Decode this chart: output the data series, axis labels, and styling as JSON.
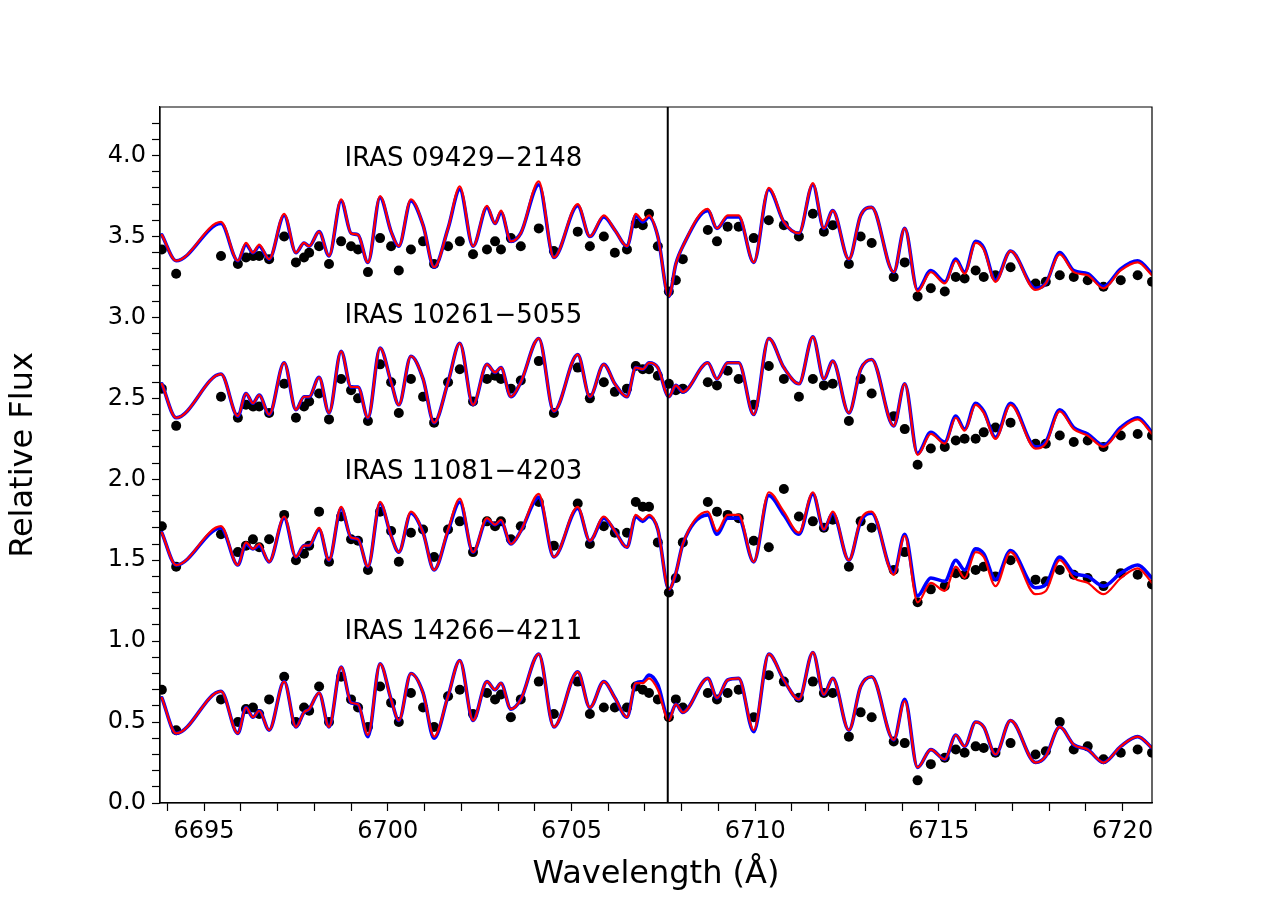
{
  "chart_data": {
    "type": "line",
    "xlabel": "Wavelength (Å)",
    "ylabel": "Relative Flux",
    "xlim": [
      6693.8,
      6720.8
    ],
    "ylim": [
      0,
      4.3
    ],
    "xticks": [
      {
        "value": 6694,
        "label": null
      },
      6695,
      {
        "value": 6696,
        "label": null
      },
      {
        "value": 6697,
        "label": null
      },
      {
        "value": 6698,
        "label": null
      },
      {
        "value": 6699,
        "label": null
      },
      6700,
      {
        "value": 6701,
        "label": null
      },
      {
        "value": 6702,
        "label": null
      },
      {
        "value": 6703,
        "label": null
      },
      {
        "value": 6704,
        "label": null
      },
      6705,
      {
        "value": 6706,
        "label": null
      },
      {
        "value": 6707,
        "label": null
      },
      {
        "value": 6708,
        "label": null
      },
      {
        "value": 6709,
        "label": null
      },
      6710,
      {
        "value": 6711,
        "label": null
      },
      {
        "value": 6712,
        "label": null
      },
      {
        "value": 6713,
        "label": null
      },
      {
        "value": 6714,
        "label": null
      },
      6715,
      {
        "value": 6716,
        "label": null
      },
      {
        "value": 6717,
        "label": null
      },
      {
        "value": 6718,
        "label": null
      },
      {
        "value": 6719,
        "label": null
      },
      6720
    ],
    "yticks": [
      {
        "value": 0,
        "label": "0.0"
      },
      {
        "value": 0.1,
        "label": null
      },
      {
        "value": 0.2,
        "label": null
      },
      {
        "value": 0.3,
        "label": null
      },
      {
        "value": 0.4,
        "label": null
      },
      {
        "value": 0.5,
        "label": "0.5"
      },
      {
        "value": 0.6,
        "label": null
      },
      {
        "value": 0.7,
        "label": null
      },
      {
        "value": 0.8,
        "label": null
      },
      {
        "value": 0.9,
        "label": null
      },
      {
        "value": 1,
        "label": "1.0"
      },
      {
        "value": 1.1,
        "label": null
      },
      {
        "value": 1.2,
        "label": null
      },
      {
        "value": 1.3,
        "label": null
      },
      {
        "value": 1.4,
        "label": null
      },
      {
        "value": 1.5,
        "label": "1.5"
      },
      {
        "value": 1.6,
        "label": null
      },
      {
        "value": 1.7,
        "label": null
      },
      {
        "value": 1.8,
        "label": null
      },
      {
        "value": 1.9,
        "label": null
      },
      {
        "value": 2,
        "label": "2.0"
      },
      {
        "value": 2.1,
        "label": null
      },
      {
        "value": 2.2,
        "label": null
      },
      {
        "value": 2.3,
        "label": null
      },
      {
        "value": 2.4,
        "label": null
      },
      {
        "value": 2.5,
        "label": "2.5"
      },
      {
        "value": 2.6,
        "label": null
      },
      {
        "value": 2.7,
        "label": null
      },
      {
        "value": 2.8,
        "label": null
      },
      {
        "value": 2.9,
        "label": null
      },
      {
        "value": 3,
        "label": "3.0"
      },
      {
        "value": 3.1,
        "label": null
      },
      {
        "value": 3.2,
        "label": null
      },
      {
        "value": 3.3,
        "label": null
      },
      {
        "value": 3.4,
        "label": null
      },
      {
        "value": 3.5,
        "label": "3.5"
      },
      {
        "value": 3.6,
        "label": null
      },
      {
        "value": 3.7,
        "label": null
      },
      {
        "value": 3.8,
        "label": null
      },
      {
        "value": 3.9,
        "label": null
      },
      {
        "value": 4,
        "label": "4.0"
      },
      {
        "value": 4.1,
        "label": null
      },
      {
        "value": 4.2,
        "label": null
      }
    ],
    "x": [
      6693.85,
      6694.24,
      6695.46,
      6695.92,
      6696.14,
      6696.33,
      6696.5,
      6696.77,
      6697.18,
      6697.5,
      6697.72,
      6697.86,
      6698.13,
      6698.4,
      6698.73,
      6699.0,
      6699.19,
      6699.46,
      6699.79,
      6700.09,
      6700.3,
      6700.63,
      6700.96,
      6701.26,
      6701.64,
      6701.96,
      6702.32,
      6702.7,
      6702.92,
      6703.08,
      6703.35,
      6703.62,
      6704.11,
      6704.52,
      6705.17,
      6705.5,
      6705.88,
      6706.18,
      6706.51,
      6706.75,
      6706.94,
      6707.11,
      6707.35,
      6707.65,
      6707.84,
      6708.03,
      6708.71,
      6708.96,
      6709.25,
      6709.55,
      6709.96,
      6710.37,
      6710.78,
      6711.19,
      6711.57,
      6711.87,
      6712.11,
      6712.55,
      6712.87,
      6713.17,
      6713.77,
      6714.07,
      6714.42,
      6714.78,
      6715.16,
      6715.46,
      6715.7,
      6716.0,
      6716.22,
      6716.54,
      6716.95,
      6717.63,
      6717.91,
      6718.29,
      6718.67,
      6719.05,
      6719.48,
      6719.95,
      6720.41,
      6720.8
    ],
    "series": [
      {
        "type": "scatter",
        "name": "IRAS 09429−2148",
        "color": "#000000",
        "marker": "circle",
        "values": [
          3.42,
          3.27,
          3.38,
          3.33,
          3.37,
          3.38,
          3.38,
          3.36,
          3.5,
          3.34,
          3.37,
          3.4,
          3.44,
          3.33,
          3.47,
          3.44,
          3.42,
          3.28,
          3.49,
          3.44,
          3.29,
          3.42,
          3.47,
          3.33,
          3.44,
          3.47,
          3.39,
          3.42,
          3.47,
          3.42,
          3.49,
          3.44,
          3.55,
          3.41,
          3.53,
          3.44,
          3.5,
          3.4,
          3.42,
          3.58,
          3.57,
          3.64,
          3.44,
          3.16,
          3.23,
          3.36,
          3.54,
          3.47,
          3.56,
          3.56,
          3.49,
          3.6,
          3.57,
          3.5,
          3.64,
          3.53,
          3.57,
          3.33,
          3.5,
          3.46,
          3.25,
          3.34,
          3.13,
          3.18,
          3.16,
          3.25,
          3.24,
          3.29,
          3.25,
          3.26,
          3.31,
          3.21,
          3.22,
          3.26,
          3.25,
          3.23,
          3.19,
          3.23,
          3.26,
          3.22
        ]
      },
      {
        "type": "scatter",
        "name": "IRAS 10261−5055",
        "color": "#000000",
        "marker": "circle",
        "values": [
          2.56,
          2.33,
          2.51,
          2.38,
          2.46,
          2.45,
          2.45,
          2.41,
          2.59,
          2.38,
          2.45,
          2.48,
          2.53,
          2.37,
          2.62,
          2.55,
          2.5,
          2.36,
          2.71,
          2.6,
          2.41,
          2.62,
          2.51,
          2.35,
          2.6,
          2.68,
          2.48,
          2.62,
          2.64,
          2.62,
          2.56,
          2.61,
          2.73,
          2.41,
          2.69,
          2.5,
          2.6,
          2.54,
          2.56,
          2.7,
          2.68,
          2.68,
          2.64,
          2.59,
          2.55,
          2.56,
          2.6,
          2.58,
          2.67,
          2.62,
          2.46,
          2.7,
          2.62,
          2.51,
          2.62,
          2.58,
          2.59,
          2.36,
          2.62,
          2.53,
          2.39,
          2.31,
          2.09,
          2.19,
          2.2,
          2.24,
          2.25,
          2.25,
          2.29,
          2.32,
          2.35,
          2.22,
          2.22,
          2.27,
          2.23,
          2.24,
          2.2,
          2.27,
          2.28,
          2.27
        ]
      },
      {
        "type": "scatter",
        "name": "IRAS 11081−4203",
        "color": "#000000",
        "marker": "circle",
        "values": [
          1.71,
          1.46,
          1.66,
          1.55,
          1.59,
          1.63,
          1.58,
          1.63,
          1.78,
          1.5,
          1.54,
          1.59,
          1.8,
          1.49,
          1.77,
          1.63,
          1.62,
          1.44,
          1.8,
          1.68,
          1.49,
          1.67,
          1.69,
          1.52,
          1.69,
          1.74,
          1.55,
          1.74,
          1.71,
          1.74,
          1.63,
          1.71,
          1.86,
          1.59,
          1.85,
          1.6,
          1.71,
          1.67,
          1.67,
          1.86,
          1.83,
          1.83,
          1.61,
          1.3,
          1.39,
          1.61,
          1.86,
          1.8,
          1.78,
          1.76,
          1.62,
          1.58,
          1.94,
          1.77,
          1.74,
          1.7,
          1.75,
          1.46,
          1.74,
          1.7,
          1.44,
          1.55,
          1.24,
          1.32,
          1.34,
          1.42,
          1.41,
          1.44,
          1.46,
          1.4,
          1.5,
          1.38,
          1.37,
          1.44,
          1.41,
          1.39,
          1.34,
          1.42,
          1.41,
          1.35
        ]
      },
      {
        "type": "scatter",
        "name": "IRAS 14266−4211",
        "color": "#000000",
        "marker": "circle",
        "values": [
          0.7,
          0.45,
          0.64,
          0.5,
          0.58,
          0.59,
          0.55,
          0.64,
          0.78,
          0.5,
          0.59,
          0.57,
          0.72,
          0.5,
          0.78,
          0.64,
          0.59,
          0.47,
          0.72,
          0.62,
          0.5,
          0.68,
          0.59,
          0.47,
          0.66,
          0.7,
          0.55,
          0.68,
          0.64,
          0.67,
          0.53,
          0.64,
          0.75,
          0.55,
          0.75,
          0.55,
          0.59,
          0.59,
          0.59,
          0.72,
          0.7,
          0.68,
          0.64,
          0.53,
          0.64,
          0.59,
          0.68,
          0.64,
          0.68,
          0.7,
          0.53,
          0.79,
          0.75,
          0.65,
          0.75,
          0.68,
          0.68,
          0.41,
          0.56,
          0.53,
          0.38,
          0.37,
          0.14,
          0.24,
          0.28,
          0.33,
          0.31,
          0.35,
          0.34,
          0.31,
          0.37,
          0.3,
          0.32,
          0.5,
          0.33,
          0.35,
          0.27,
          0.31,
          0.33,
          0.31
        ]
      },
      {
        "type": "line",
        "color": "#0000ff",
        "values": [
          3.51,
          3.35,
          3.58,
          3.35,
          3.45,
          3.4,
          3.44,
          3.36,
          3.63,
          3.4,
          3.46,
          3.44,
          3.53,
          3.38,
          3.72,
          3.52,
          3.51,
          3.34,
          3.74,
          3.53,
          3.44,
          3.72,
          3.57,
          3.31,
          3.55,
          3.79,
          3.44,
          3.68,
          3.58,
          3.65,
          3.47,
          3.52,
          3.82,
          3.37,
          3.69,
          3.5,
          3.62,
          3.54,
          3.44,
          3.63,
          3.59,
          3.62,
          3.5,
          3.13,
          3.33,
          3.44,
          3.66,
          3.55,
          3.62,
          3.62,
          3.34,
          3.79,
          3.59,
          3.52,
          3.82,
          3.55,
          3.66,
          3.36,
          3.63,
          3.68,
          3.28,
          3.55,
          3.17,
          3.29,
          3.22,
          3.36,
          3.28,
          3.47,
          3.43,
          3.23,
          3.41,
          3.18,
          3.21,
          3.4,
          3.29,
          3.27,
          3.19,
          3.3,
          3.35,
          3.27
        ]
      },
      {
        "type": "line",
        "color": "#ff0000",
        "values": [
          3.51,
          3.35,
          3.59,
          3.35,
          3.46,
          3.4,
          3.45,
          3.36,
          3.64,
          3.4,
          3.46,
          3.44,
          3.53,
          3.38,
          3.73,
          3.52,
          3.51,
          3.34,
          3.75,
          3.53,
          3.44,
          3.73,
          3.57,
          3.31,
          3.55,
          3.81,
          3.44,
          3.69,
          3.58,
          3.66,
          3.47,
          3.52,
          3.84,
          3.37,
          3.7,
          3.5,
          3.63,
          3.54,
          3.44,
          3.64,
          3.6,
          3.63,
          3.5,
          3.13,
          3.33,
          3.44,
          3.67,
          3.55,
          3.63,
          3.63,
          3.34,
          3.8,
          3.59,
          3.52,
          3.83,
          3.55,
          3.66,
          3.36,
          3.63,
          3.68,
          3.28,
          3.55,
          3.16,
          3.28,
          3.21,
          3.35,
          3.27,
          3.46,
          3.42,
          3.22,
          3.41,
          3.17,
          3.21,
          3.39,
          3.28,
          3.26,
          3.18,
          3.29,
          3.34,
          3.26
        ]
      },
      {
        "type": "line",
        "color": "#0000ff",
        "values": [
          2.59,
          2.38,
          2.65,
          2.39,
          2.53,
          2.47,
          2.52,
          2.4,
          2.72,
          2.43,
          2.51,
          2.51,
          2.63,
          2.41,
          2.79,
          2.57,
          2.57,
          2.38,
          2.81,
          2.6,
          2.46,
          2.76,
          2.62,
          2.35,
          2.6,
          2.84,
          2.46,
          2.71,
          2.66,
          2.69,
          2.51,
          2.6,
          2.87,
          2.42,
          2.77,
          2.51,
          2.71,
          2.59,
          2.51,
          2.69,
          2.68,
          2.72,
          2.69,
          2.51,
          2.58,
          2.54,
          2.72,
          2.62,
          2.72,
          2.72,
          2.4,
          2.87,
          2.69,
          2.59,
          2.88,
          2.62,
          2.73,
          2.41,
          2.68,
          2.74,
          2.33,
          2.59,
          2.16,
          2.29,
          2.23,
          2.39,
          2.31,
          2.47,
          2.42,
          2.26,
          2.47,
          2.2,
          2.23,
          2.43,
          2.32,
          2.28,
          2.21,
          2.32,
          2.38,
          2.29
        ]
      },
      {
        "type": "line",
        "color": "#ff0000",
        "values": [
          2.59,
          2.38,
          2.65,
          2.39,
          2.53,
          2.47,
          2.52,
          2.4,
          2.72,
          2.43,
          2.51,
          2.51,
          2.63,
          2.41,
          2.79,
          2.57,
          2.57,
          2.38,
          2.81,
          2.6,
          2.46,
          2.76,
          2.62,
          2.35,
          2.6,
          2.84,
          2.46,
          2.71,
          2.66,
          2.69,
          2.51,
          2.6,
          2.87,
          2.42,
          2.77,
          2.51,
          2.71,
          2.59,
          2.51,
          2.69,
          2.68,
          2.72,
          2.69,
          2.51,
          2.58,
          2.54,
          2.72,
          2.62,
          2.72,
          2.72,
          2.4,
          2.87,
          2.69,
          2.59,
          2.88,
          2.62,
          2.73,
          2.41,
          2.68,
          2.74,
          2.33,
          2.59,
          2.15,
          2.28,
          2.22,
          2.38,
          2.3,
          2.46,
          2.41,
          2.25,
          2.46,
          2.19,
          2.22,
          2.42,
          2.31,
          2.27,
          2.2,
          2.31,
          2.37,
          2.28
        ]
      },
      {
        "type": "line",
        "color": "#0000ff",
        "values": [
          1.67,
          1.47,
          1.7,
          1.47,
          1.6,
          1.57,
          1.59,
          1.49,
          1.76,
          1.52,
          1.59,
          1.59,
          1.69,
          1.5,
          1.82,
          1.64,
          1.63,
          1.46,
          1.85,
          1.65,
          1.55,
          1.79,
          1.67,
          1.44,
          1.68,
          1.86,
          1.55,
          1.75,
          1.72,
          1.74,
          1.6,
          1.68,
          1.89,
          1.52,
          1.82,
          1.62,
          1.76,
          1.68,
          1.58,
          1.77,
          1.74,
          1.77,
          1.69,
          1.32,
          1.42,
          1.6,
          1.78,
          1.66,
          1.76,
          1.76,
          1.49,
          1.9,
          1.78,
          1.66,
          1.91,
          1.69,
          1.79,
          1.5,
          1.74,
          1.79,
          1.42,
          1.66,
          1.28,
          1.39,
          1.37,
          1.5,
          1.44,
          1.57,
          1.54,
          1.38,
          1.56,
          1.33,
          1.35,
          1.52,
          1.42,
          1.4,
          1.34,
          1.42,
          1.47,
          1.39
        ]
      },
      {
        "type": "line",
        "color": "#ff0000",
        "values": [
          1.67,
          1.47,
          1.71,
          1.47,
          1.61,
          1.57,
          1.6,
          1.49,
          1.77,
          1.52,
          1.59,
          1.59,
          1.7,
          1.5,
          1.83,
          1.64,
          1.63,
          1.46,
          1.86,
          1.65,
          1.55,
          1.8,
          1.67,
          1.44,
          1.69,
          1.88,
          1.55,
          1.76,
          1.72,
          1.75,
          1.6,
          1.68,
          1.91,
          1.52,
          1.83,
          1.62,
          1.77,
          1.68,
          1.58,
          1.78,
          1.75,
          1.78,
          1.69,
          1.32,
          1.42,
          1.6,
          1.8,
          1.68,
          1.78,
          1.78,
          1.49,
          1.92,
          1.8,
          1.67,
          1.92,
          1.69,
          1.8,
          1.5,
          1.75,
          1.8,
          1.41,
          1.65,
          1.24,
          1.36,
          1.31,
          1.46,
          1.39,
          1.55,
          1.52,
          1.34,
          1.55,
          1.29,
          1.31,
          1.5,
          1.39,
          1.36,
          1.29,
          1.39,
          1.45,
          1.36
        ]
      },
      {
        "type": "line",
        "color": "#0000ff",
        "values": [
          0.65,
          0.43,
          0.69,
          0.43,
          0.59,
          0.53,
          0.57,
          0.45,
          0.75,
          0.47,
          0.56,
          0.58,
          0.68,
          0.47,
          0.84,
          0.62,
          0.61,
          0.41,
          0.86,
          0.64,
          0.51,
          0.8,
          0.68,
          0.4,
          0.66,
          0.88,
          0.51,
          0.75,
          0.7,
          0.74,
          0.58,
          0.64,
          0.92,
          0.47,
          0.81,
          0.59,
          0.75,
          0.65,
          0.53,
          0.74,
          0.75,
          0.79,
          0.73,
          0.52,
          0.61,
          0.56,
          0.77,
          0.65,
          0.76,
          0.77,
          0.44,
          0.92,
          0.76,
          0.64,
          0.93,
          0.67,
          0.77,
          0.45,
          0.72,
          0.78,
          0.39,
          0.64,
          0.22,
          0.33,
          0.27,
          0.42,
          0.35,
          0.5,
          0.47,
          0.3,
          0.51,
          0.25,
          0.29,
          0.47,
          0.36,
          0.33,
          0.25,
          0.35,
          0.41,
          0.34
        ]
      },
      {
        "type": "line",
        "color": "#ff0000",
        "values": [
          0.65,
          0.43,
          0.69,
          0.43,
          0.59,
          0.53,
          0.57,
          0.45,
          0.75,
          0.47,
          0.56,
          0.58,
          0.68,
          0.47,
          0.84,
          0.62,
          0.61,
          0.42,
          0.86,
          0.64,
          0.51,
          0.8,
          0.68,
          0.41,
          0.66,
          0.88,
          0.51,
          0.75,
          0.7,
          0.74,
          0.58,
          0.64,
          0.92,
          0.47,
          0.81,
          0.59,
          0.75,
          0.65,
          0.53,
          0.74,
          0.74,
          0.77,
          0.7,
          0.51,
          0.61,
          0.56,
          0.77,
          0.65,
          0.76,
          0.77,
          0.45,
          0.92,
          0.76,
          0.64,
          0.93,
          0.67,
          0.77,
          0.45,
          0.72,
          0.78,
          0.39,
          0.63,
          0.22,
          0.33,
          0.27,
          0.42,
          0.35,
          0.5,
          0.47,
          0.3,
          0.51,
          0.25,
          0.29,
          0.47,
          0.36,
          0.33,
          0.25,
          0.35,
          0.41,
          0.34
        ]
      }
    ],
    "ref_lines": [
      {
        "axis": "x",
        "value": 6707.62,
        "color": "#000000"
      }
    ]
  }
}
